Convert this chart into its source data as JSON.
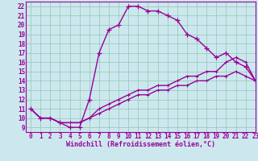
{
  "xlabel": "Windchill (Refroidissement éolien,°C)",
  "bg_color": "#cce8ee",
  "line_color": "#990099",
  "grid_color": "#99ccbb",
  "xlim": [
    -0.5,
    23
  ],
  "ylim": [
    8.5,
    22.5
  ],
  "xticks": [
    0,
    1,
    2,
    3,
    4,
    5,
    6,
    7,
    8,
    9,
    10,
    11,
    12,
    13,
    14,
    15,
    16,
    17,
    18,
    19,
    20,
    21,
    22,
    23
  ],
  "yticks": [
    9,
    10,
    11,
    12,
    13,
    14,
    15,
    16,
    17,
    18,
    19,
    20,
    21,
    22
  ],
  "series1_x": [
    0,
    1,
    2,
    3,
    4,
    5,
    6,
    7,
    8,
    9,
    10,
    11,
    12,
    13,
    14,
    15,
    16,
    17,
    18,
    19,
    20,
    21,
    22,
    23
  ],
  "series1_y": [
    11,
    10,
    10,
    9.5,
    9,
    9,
    12,
    17,
    19.5,
    20,
    22,
    22,
    21.5,
    21.5,
    21,
    20.5,
    19,
    18.5,
    17.5,
    16.5,
    17,
    16,
    15.5,
    14
  ],
  "series2_x": [
    0,
    1,
    2,
    3,
    4,
    5,
    6,
    7,
    8,
    9,
    10,
    11,
    12,
    13,
    14,
    15,
    16,
    17,
    18,
    19,
    20,
    21,
    22,
    23
  ],
  "series2_y": [
    11,
    10,
    10,
    9.5,
    9.5,
    9.5,
    10,
    11,
    11.5,
    12,
    12.5,
    13,
    13,
    13.5,
    13.5,
    14,
    14.5,
    14.5,
    15,
    15,
    16,
    16.5,
    16,
    14
  ],
  "series3_x": [
    0,
    1,
    2,
    3,
    4,
    5,
    6,
    7,
    8,
    9,
    10,
    11,
    12,
    13,
    14,
    15,
    16,
    17,
    18,
    19,
    20,
    21,
    22,
    23
  ],
  "series3_y": [
    11,
    10,
    10,
    9.5,
    9.5,
    9.5,
    10,
    10.5,
    11,
    11.5,
    12,
    12.5,
    12.5,
    13,
    13,
    13.5,
    13.5,
    14,
    14,
    14.5,
    14.5,
    15,
    14.5,
    14
  ],
  "xlabel_fontsize": 6,
  "tick_fontsize": 5.5,
  "linewidth": 1.0,
  "marker_size": 3
}
